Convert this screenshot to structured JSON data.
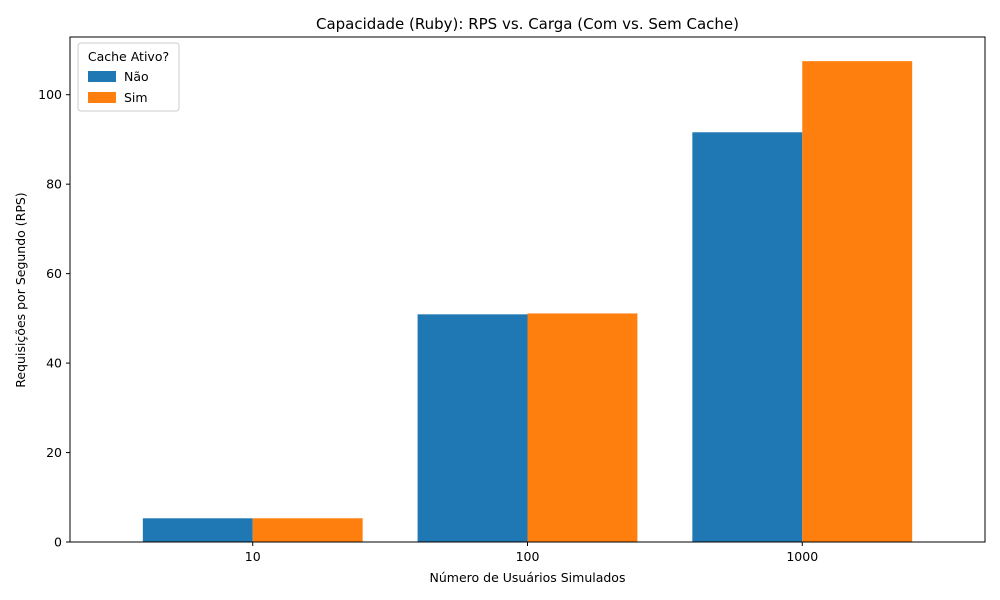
{
  "chart_data": {
    "type": "bar",
    "title": "Capacidade (Ruby): RPS vs. Carga (Com vs. Sem Cache)",
    "xlabel": "Número de Usuários Simulados",
    "ylabel": "Requisições por Segundo (RPS)",
    "categories": [
      "10",
      "100",
      "1000"
    ],
    "series": [
      {
        "name": "Não",
        "values": [
          5.3,
          50.9,
          91.6
        ],
        "color": "#1f77b4"
      },
      {
        "name": "Sim",
        "values": [
          5.3,
          51.1,
          107.5
        ],
        "color": "#ff7f0e"
      }
    ],
    "ylim": [
      0,
      112.9
    ],
    "yticks": [
      0,
      20,
      40,
      60,
      80,
      100
    ],
    "legend": {
      "title": "Cache Ativo?",
      "position": "top-left"
    },
    "grid": false
  }
}
